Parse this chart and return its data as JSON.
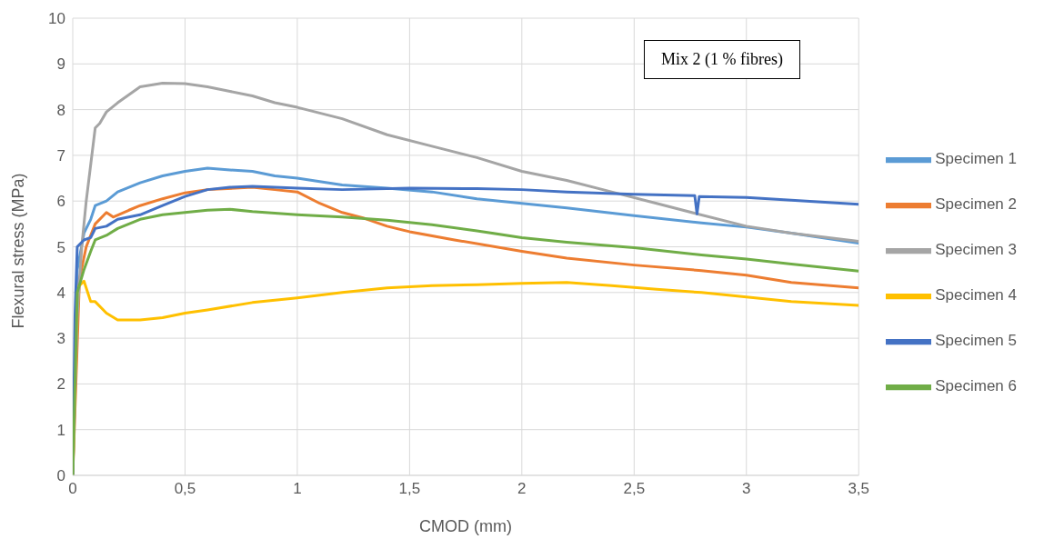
{
  "chart_data": {
    "type": "line",
    "xlabel": "CMOD (mm)",
    "ylabel": "Flexural stress (MPa)",
    "annotations": [
      "Mix 2 (1 % fibres)"
    ],
    "xlim": [
      0,
      3.5
    ],
    "xticks": [
      0,
      {
        "value": 0.5,
        "label": "0,5"
      },
      1,
      {
        "value": 1.5,
        "label": "1,5"
      },
      2,
      {
        "value": 2.5,
        "label": "2,5"
      },
      3,
      {
        "value": 3.5,
        "label": "3,5"
      }
    ],
    "ylim": [
      0,
      10
    ],
    "yticks": [
      0,
      1,
      2,
      3,
      4,
      5,
      6,
      7,
      8,
      9,
      10
    ],
    "grid": true,
    "legend": "right",
    "marker": "none",
    "line_style": "solid",
    "series": [
      {
        "name": "Specimen 1",
        "color": "#5b9bd5",
        "x": [
          0,
          0.02,
          0.05,
          0.08,
          0.1,
          0.15,
          0.2,
          0.3,
          0.4,
          0.5,
          0.6,
          0.7,
          0.8,
          0.9,
          1.0,
          1.2,
          1.4,
          1.6,
          1.8,
          2.0,
          2.2,
          2.5,
          2.8,
          3.0,
          3.2,
          3.5
        ],
        "values": [
          0,
          4.5,
          5.3,
          5.6,
          5.9,
          6.0,
          6.2,
          6.4,
          6.55,
          6.65,
          6.72,
          6.68,
          6.65,
          6.55,
          6.5,
          6.35,
          6.28,
          6.2,
          6.05,
          5.95,
          5.85,
          5.68,
          5.52,
          5.43,
          5.3,
          5.08
        ]
      },
      {
        "name": "Specimen 2",
        "color": "#ed7d31",
        "x": [
          0,
          0.03,
          0.06,
          0.1,
          0.15,
          0.18,
          0.25,
          0.3,
          0.4,
          0.5,
          0.6,
          0.8,
          0.9,
          1.0,
          1.1,
          1.2,
          1.3,
          1.4,
          1.5,
          1.7,
          2.0,
          2.2,
          2.5,
          2.8,
          3.0,
          3.2,
          3.5
        ],
        "values": [
          0,
          4.3,
          5.0,
          5.5,
          5.75,
          5.65,
          5.8,
          5.9,
          6.05,
          6.18,
          6.25,
          6.3,
          6.25,
          6.2,
          5.95,
          5.75,
          5.62,
          5.45,
          5.33,
          5.15,
          4.9,
          4.75,
          4.6,
          4.48,
          4.38,
          4.22,
          4.1
        ]
      },
      {
        "name": "Specimen 3",
        "color": "#a5a5a5",
        "x": [
          0,
          0.02,
          0.04,
          0.06,
          0.08,
          0.1,
          0.12,
          0.15,
          0.2,
          0.3,
          0.4,
          0.5,
          0.6,
          0.7,
          0.8,
          0.9,
          1.0,
          1.2,
          1.4,
          1.6,
          1.8,
          2.0,
          2.2,
          2.4,
          2.6,
          2.78,
          3.0,
          3.2,
          3.5
        ],
        "values": [
          0,
          3.5,
          5.0,
          6.0,
          6.8,
          7.6,
          7.7,
          7.95,
          8.15,
          8.5,
          8.58,
          8.57,
          8.5,
          8.4,
          8.3,
          8.15,
          8.05,
          7.8,
          7.45,
          7.2,
          6.95,
          6.65,
          6.45,
          6.2,
          5.95,
          5.72,
          5.45,
          5.3,
          5.12
        ]
      },
      {
        "name": "Specimen 4",
        "color": "#ffc000",
        "x": [
          0,
          0.01,
          0.02,
          0.05,
          0.08,
          0.1,
          0.15,
          0.2,
          0.3,
          0.4,
          0.5,
          0.6,
          0.8,
          1.0,
          1.2,
          1.4,
          1.6,
          1.8,
          2.0,
          2.2,
          2.4,
          2.6,
          2.8,
          3.0,
          3.2,
          3.5
        ],
        "values": [
          0,
          2.0,
          4.1,
          4.25,
          3.8,
          3.8,
          3.55,
          3.4,
          3.4,
          3.45,
          3.55,
          3.62,
          3.78,
          3.88,
          4.0,
          4.1,
          4.15,
          4.17,
          4.2,
          4.22,
          4.15,
          4.07,
          4.0,
          3.9,
          3.8,
          3.72
        ]
      },
      {
        "name": "Specimen 5",
        "color": "#4472c4",
        "x": [
          0,
          0.01,
          0.02,
          0.05,
          0.08,
          0.1,
          0.15,
          0.2,
          0.3,
          0.4,
          0.5,
          0.6,
          0.7,
          0.8,
          1.0,
          1.2,
          1.5,
          1.8,
          2.0,
          2.2,
          2.5,
          2.77,
          2.78,
          2.79,
          3.0,
          3.2,
          3.5
        ],
        "values": [
          0,
          3.5,
          5.0,
          5.15,
          5.2,
          5.4,
          5.45,
          5.6,
          5.7,
          5.9,
          6.1,
          6.25,
          6.3,
          6.32,
          6.28,
          6.25,
          6.28,
          6.27,
          6.25,
          6.2,
          6.15,
          6.12,
          5.72,
          6.1,
          6.08,
          6.02,
          5.93
        ]
      },
      {
        "name": "Specimen 6",
        "color": "#70ad47",
        "x": [
          0,
          0.02,
          0.05,
          0.08,
          0.1,
          0.15,
          0.2,
          0.3,
          0.4,
          0.5,
          0.6,
          0.7,
          0.8,
          1.0,
          1.2,
          1.4,
          1.6,
          1.8,
          2.0,
          2.2,
          2.5,
          2.8,
          3.0,
          3.2,
          3.5
        ],
        "values": [
          0,
          4.0,
          4.5,
          4.9,
          5.15,
          5.25,
          5.4,
          5.6,
          5.7,
          5.75,
          5.8,
          5.82,
          5.77,
          5.7,
          5.65,
          5.58,
          5.48,
          5.35,
          5.2,
          5.1,
          4.98,
          4.82,
          4.73,
          4.62,
          4.47
        ]
      }
    ]
  }
}
